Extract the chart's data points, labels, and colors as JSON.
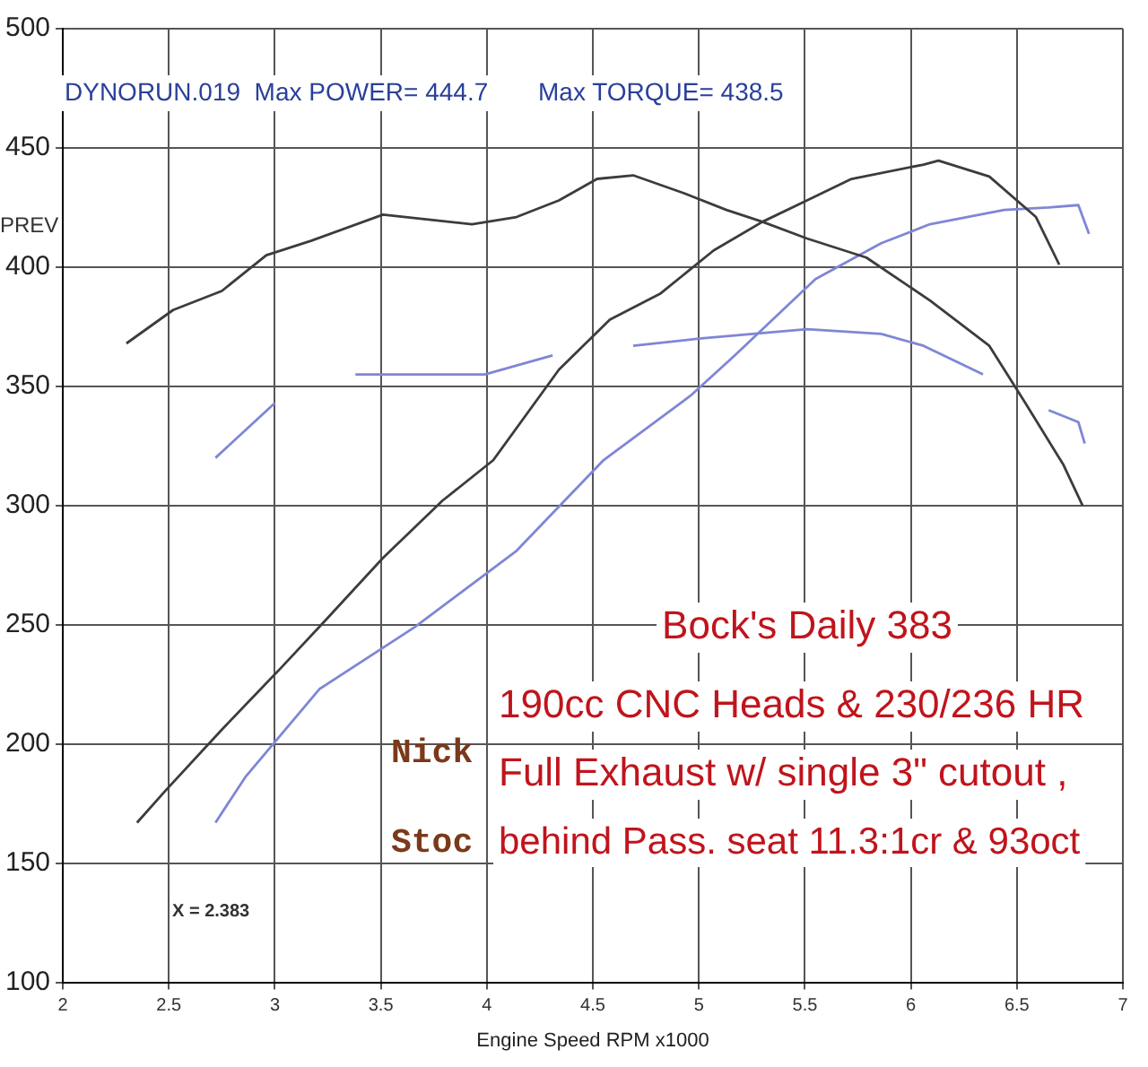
{
  "chart_data": {
    "type": "line",
    "xlabel": "Engine Speed RPM x1000",
    "xlim": [
      2,
      7
    ],
    "xticks": [
      2,
      2.5,
      3,
      3.5,
      4,
      4.5,
      5,
      5.5,
      6,
      6.5,
      7
    ],
    "ylim": [
      100,
      500
    ],
    "yticks": [
      100,
      150,
      200,
      250,
      300,
      350,
      400,
      450,
      500
    ],
    "grid": true,
    "legend": false,
    "marker": "none",
    "line_style": "solid",
    "series": [
      {
        "color": "#3c3c3c",
        "x": [
          2.3,
          2.52,
          2.75,
          2.96,
          3.17,
          3.51,
          3.93,
          4.14,
          4.34,
          4.52,
          4.69,
          4.93,
          5.13,
          5.3,
          5.51,
          5.79,
          6.09,
          6.37,
          6.54,
          6.72,
          6.81
        ],
        "values": [
          368,
          382,
          390,
          405,
          411,
          422,
          418,
          421,
          428,
          437,
          438.5,
          431,
          424,
          419,
          412,
          404,
          386,
          367,
          343,
          317,
          300
        ]
      },
      {
        "color": "#3c3c3c",
        "x": [
          2.35,
          2.48,
          2.75,
          3.03,
          3.24,
          3.51,
          3.79,
          4.03,
          4.34,
          4.58,
          4.82,
          5.07,
          5.3,
          5.51,
          5.72,
          6.06,
          6.13,
          6.37,
          6.59,
          6.7
        ],
        "values": [
          167,
          180,
          206,
          232,
          252,
          278,
          302,
          319,
          357,
          378,
          389,
          407,
          419,
          428,
          437,
          443,
          444.7,
          438,
          421,
          401
        ]
      },
      {
        "color": "#7f86d6",
        "x": [
          2.72,
          3.0,
          3.1,
          3.38,
          3.99,
          4.31,
          4.5,
          4.69,
          5.0,
          5.51,
          5.86,
          6.06,
          6.34,
          6.5,
          6.65,
          6.79,
          6.82
        ],
        "values": [
          320,
          343,
          null,
          355,
          355,
          363,
          null,
          367,
          370,
          374,
          372,
          367,
          355,
          null,
          340,
          335,
          326
        ]
      },
      {
        "color": "#7f86d6",
        "x": [
          2.72,
          2.86,
          3.21,
          3.66,
          4.14,
          4.55,
          4.96,
          5.17,
          5.55,
          5.86,
          6.09,
          6.44,
          6.65,
          6.79,
          6.84
        ],
        "values": [
          167,
          186,
          223,
          249,
          281,
          319,
          346,
          363,
          395,
          410,
          418,
          424,
          425,
          426,
          414
        ]
      }
    ],
    "annotations": [
      "DYNORUN.019  Max POWER= 444.7",
      "Max TORQUE= 438.5",
      "PREV",
      "X = 2.383",
      "Bock's Daily 383",
      "190cc CNC Heads & 230/236 HR",
      "Full Exhaust w/ single 3\" cutout ,",
      "behind Pass. seat 11.3:1cr & 93oct",
      "Nick",
      "Stoc"
    ]
  }
}
